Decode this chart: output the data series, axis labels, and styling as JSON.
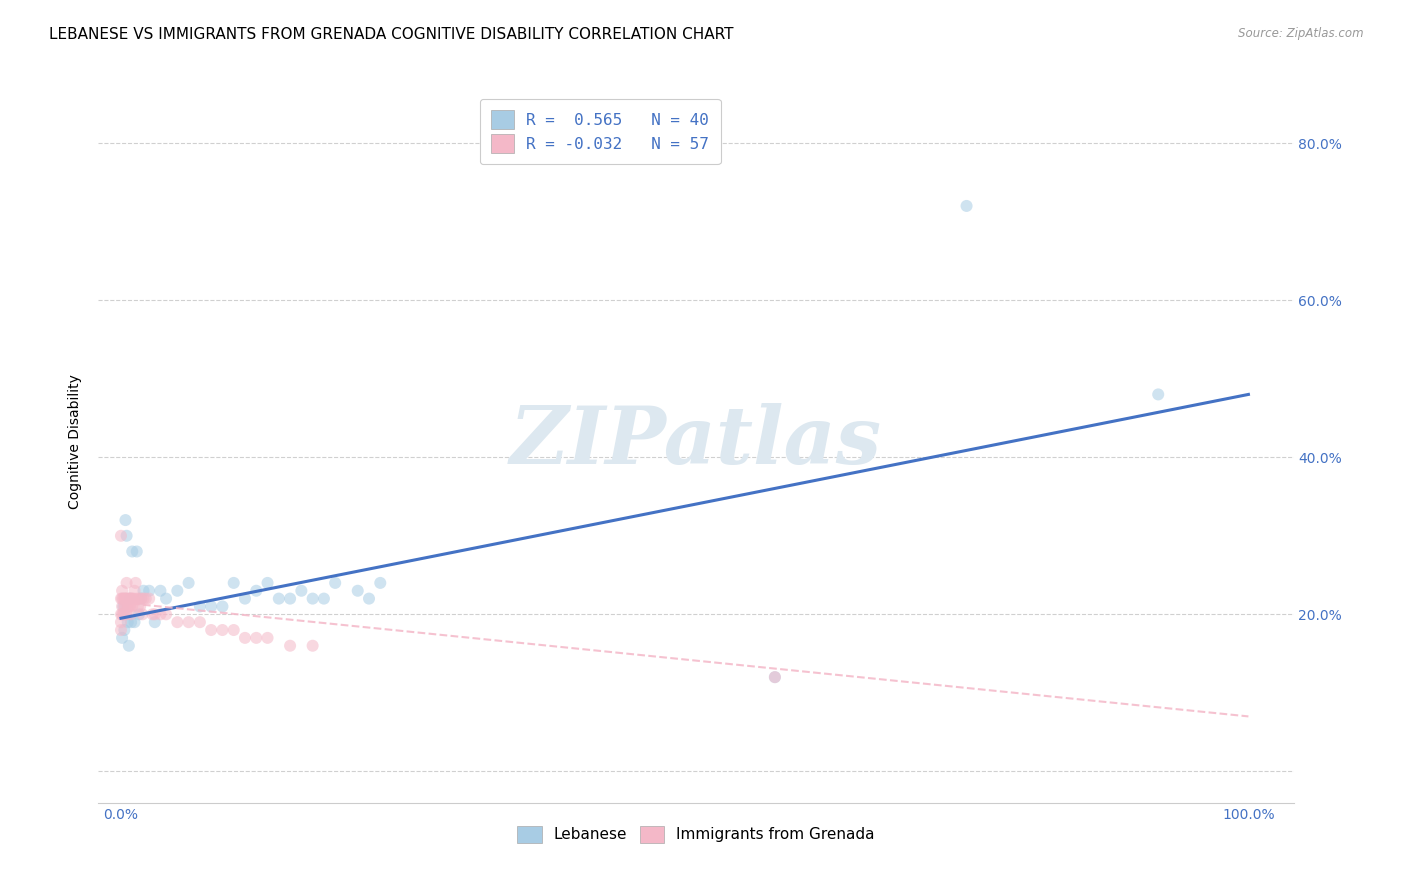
{
  "title": "LEBANESE VS IMMIGRANTS FROM GRENADA COGNITIVE DISABILITY CORRELATION CHART",
  "source": "Source: ZipAtlas.com",
  "ylabel": "Cognitive Disability",
  "watermark": "ZIPatlas",
  "r_blue": 0.565,
  "n_blue": 40,
  "r_pink": -0.032,
  "n_pink": 57,
  "blue_color": "#a8cce4",
  "pink_color": "#f4b8c8",
  "blue_line_color": "#4472c4",
  "pink_line_color": "#f4b8c8",
  "blue_x": [
    0.001,
    0.002,
    0.003,
    0.004,
    0.005,
    0.006,
    0.007,
    0.008,
    0.009,
    0.01,
    0.012,
    0.014,
    0.016,
    0.018,
    0.02,
    0.025,
    0.03,
    0.035,
    0.04,
    0.05,
    0.06,
    0.07,
    0.08,
    0.09,
    0.1,
    0.11,
    0.12,
    0.13,
    0.14,
    0.15,
    0.16,
    0.17,
    0.18,
    0.19,
    0.21,
    0.22,
    0.23,
    0.58,
    0.75,
    0.92
  ],
  "blue_y": [
    0.17,
    0.21,
    0.18,
    0.32,
    0.3,
    0.19,
    0.16,
    0.22,
    0.19,
    0.28,
    0.19,
    0.28,
    0.2,
    0.22,
    0.23,
    0.23,
    0.19,
    0.23,
    0.22,
    0.23,
    0.24,
    0.21,
    0.21,
    0.21,
    0.24,
    0.22,
    0.23,
    0.24,
    0.22,
    0.22,
    0.23,
    0.22,
    0.22,
    0.24,
    0.23,
    0.22,
    0.24,
    0.12,
    0.72,
    0.48
  ],
  "pink_x": [
    0.0,
    0.0,
    0.0,
    0.0,
    0.0,
    0.001,
    0.001,
    0.001,
    0.001,
    0.002,
    0.002,
    0.003,
    0.003,
    0.003,
    0.004,
    0.004,
    0.005,
    0.005,
    0.005,
    0.006,
    0.006,
    0.007,
    0.007,
    0.008,
    0.008,
    0.009,
    0.009,
    0.01,
    0.01,
    0.011,
    0.012,
    0.013,
    0.014,
    0.015,
    0.016,
    0.017,
    0.018,
    0.019,
    0.02,
    0.022,
    0.025,
    0.028,
    0.03,
    0.035,
    0.04,
    0.05,
    0.06,
    0.07,
    0.08,
    0.09,
    0.1,
    0.11,
    0.12,
    0.13,
    0.15,
    0.17,
    0.58
  ],
  "pink_y": [
    0.3,
    0.22,
    0.2,
    0.19,
    0.18,
    0.23,
    0.22,
    0.21,
    0.2,
    0.22,
    0.2,
    0.22,
    0.21,
    0.2,
    0.22,
    0.21,
    0.24,
    0.22,
    0.2,
    0.22,
    0.21,
    0.22,
    0.21,
    0.22,
    0.21,
    0.22,
    0.2,
    0.22,
    0.21,
    0.22,
    0.23,
    0.24,
    0.22,
    0.21,
    0.22,
    0.21,
    0.22,
    0.2,
    0.22,
    0.22,
    0.22,
    0.2,
    0.2,
    0.2,
    0.2,
    0.19,
    0.19,
    0.19,
    0.18,
    0.18,
    0.18,
    0.17,
    0.17,
    0.17,
    0.16,
    0.16,
    0.12
  ],
  "blue_line_start_x": 0.0,
  "blue_line_start_y": 0.195,
  "blue_line_end_x": 1.0,
  "blue_line_end_y": 0.48,
  "pink_line_start_x": 0.0,
  "pink_line_start_y": 0.215,
  "pink_line_end_x": 1.0,
  "pink_line_end_y": 0.07,
  "xlim": [
    -0.02,
    1.04
  ],
  "ylim": [
    -0.04,
    0.88
  ],
  "ytick_positions": [
    0.0,
    0.2,
    0.4,
    0.6,
    0.8
  ],
  "right_yticklabels": [
    "",
    "20.0%",
    "40.0%",
    "60.0%",
    "80.0%"
  ],
  "xtick_positions": [
    0.0,
    0.1,
    0.2,
    0.3,
    0.4,
    0.5,
    0.6,
    0.7,
    0.8,
    0.9,
    1.0
  ],
  "x_edge_labels": {
    "0.0": "0.0%",
    "1.0": "100.0%"
  },
  "grid_color": "#d0d0d0",
  "background_color": "#ffffff",
  "title_fontsize": 11,
  "axis_label_fontsize": 10,
  "tick_fontsize": 10,
  "marker_size": 75,
  "marker_alpha": 0.55,
  "legend_label_blue": "Lebanese",
  "legend_label_pink": "Immigrants from Grenada"
}
